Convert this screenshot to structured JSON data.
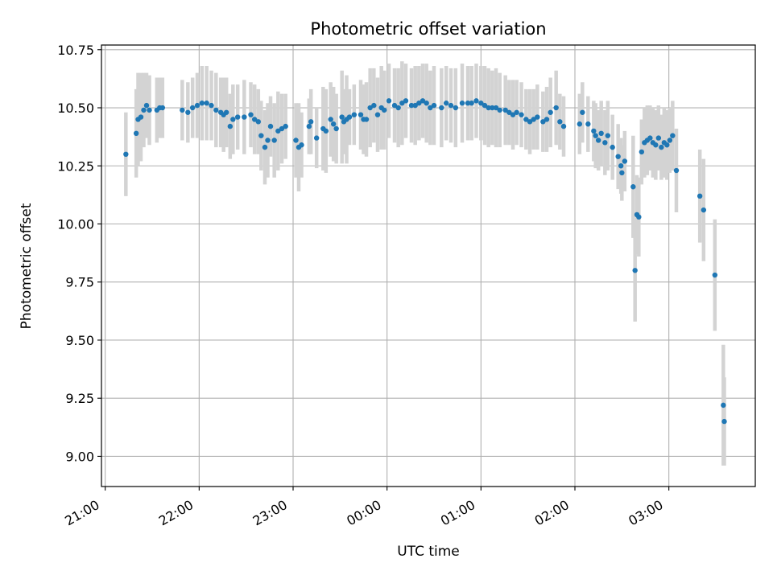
{
  "chart_data": {
    "type": "scatter",
    "title": "Photometric offset variation",
    "xlabel": "UTC time",
    "ylabel": "Photometric offset",
    "x_tick_labels": [
      "21:00",
      "22:00",
      "23:00",
      "00:00",
      "01:00",
      "02:00",
      "03:00"
    ],
    "y_tick_labels": [
      "9.00",
      "9.25",
      "9.50",
      "9.75",
      "10.00",
      "10.25",
      "10.50",
      "10.75"
    ],
    "y_ticks": [
      9.0,
      9.25,
      9.5,
      9.75,
      10.0,
      10.25,
      10.5,
      10.75
    ],
    "x_ticks_hours": [
      21,
      22,
      23,
      24,
      25,
      26,
      27
    ],
    "xlim_hours": [
      20.96,
      27.92
    ],
    "ylim": [
      8.87,
      10.77
    ],
    "grid": true,
    "colors": {
      "point": "#1f77b4",
      "errorbar": "#d3d3d3",
      "grid": "#b0b0b0"
    },
    "points": [
      {
        "t": 21.22,
        "y": 10.3,
        "e": 0.18
      },
      {
        "t": 21.33,
        "y": 10.39,
        "e": 0.19
      },
      {
        "t": 21.35,
        "y": 10.45,
        "e": 0.2
      },
      {
        "t": 21.38,
        "y": 10.46,
        "e": 0.19
      },
      {
        "t": 21.41,
        "y": 10.49,
        "e": 0.16
      },
      {
        "t": 21.44,
        "y": 10.51,
        "e": 0.14
      },
      {
        "t": 21.47,
        "y": 10.49,
        "e": 0.15
      },
      {
        "t": 21.55,
        "y": 10.49,
        "e": 0.14
      },
      {
        "t": 21.58,
        "y": 10.5,
        "e": 0.13
      },
      {
        "t": 21.61,
        "y": 10.5,
        "e": 0.13
      },
      {
        "t": 21.82,
        "y": 10.49,
        "e": 0.13
      },
      {
        "t": 21.88,
        "y": 10.48,
        "e": 0.13
      },
      {
        "t": 21.93,
        "y": 10.5,
        "e": 0.13
      },
      {
        "t": 21.98,
        "y": 10.51,
        "e": 0.14
      },
      {
        "t": 22.03,
        "y": 10.52,
        "e": 0.16
      },
      {
        "t": 22.08,
        "y": 10.52,
        "e": 0.16
      },
      {
        "t": 22.13,
        "y": 10.51,
        "e": 0.15
      },
      {
        "t": 22.18,
        "y": 10.49,
        "e": 0.16
      },
      {
        "t": 22.23,
        "y": 10.48,
        "e": 0.15
      },
      {
        "t": 22.26,
        "y": 10.47,
        "e": 0.16
      },
      {
        "t": 22.29,
        "y": 10.48,
        "e": 0.15
      },
      {
        "t": 22.33,
        "y": 10.42,
        "e": 0.14
      },
      {
        "t": 22.36,
        "y": 10.45,
        "e": 0.15
      },
      {
        "t": 22.41,
        "y": 10.46,
        "e": 0.14
      },
      {
        "t": 22.48,
        "y": 10.46,
        "e": 0.16
      },
      {
        "t": 22.55,
        "y": 10.47,
        "e": 0.14
      },
      {
        "t": 22.59,
        "y": 10.45,
        "e": 0.15
      },
      {
        "t": 22.63,
        "y": 10.44,
        "e": 0.14
      },
      {
        "t": 22.66,
        "y": 10.38,
        "e": 0.15
      },
      {
        "t": 22.7,
        "y": 10.33,
        "e": 0.16
      },
      {
        "t": 22.73,
        "y": 10.36,
        "e": 0.16
      },
      {
        "t": 22.76,
        "y": 10.42,
        "e": 0.13
      },
      {
        "t": 22.8,
        "y": 10.36,
        "e": 0.16
      },
      {
        "t": 22.84,
        "y": 10.4,
        "e": 0.17
      },
      {
        "t": 22.88,
        "y": 10.41,
        "e": 0.15
      },
      {
        "t": 22.92,
        "y": 10.42,
        "e": 0.14
      },
      {
        "t": 23.03,
        "y": 10.36,
        "e": 0.16
      },
      {
        "t": 23.06,
        "y": 10.33,
        "e": 0.19
      },
      {
        "t": 23.09,
        "y": 10.34,
        "e": 0.14
      },
      {
        "t": 23.17,
        "y": 10.42,
        "e": 0.12
      },
      {
        "t": 23.19,
        "y": 10.44,
        "e": 0.14
      },
      {
        "t": 23.25,
        "y": 10.37,
        "e": 0.13
      },
      {
        "t": 23.32,
        "y": 10.41,
        "e": 0.18
      },
      {
        "t": 23.35,
        "y": 10.4,
        "e": 0.18
      },
      {
        "t": 23.4,
        "y": 10.45,
        "e": 0.16
      },
      {
        "t": 23.43,
        "y": 10.43,
        "e": 0.16
      },
      {
        "t": 23.46,
        "y": 10.41,
        "e": 0.15
      },
      {
        "t": 23.52,
        "y": 10.46,
        "e": 0.2
      },
      {
        "t": 23.54,
        "y": 10.44,
        "e": 0.14
      },
      {
        "t": 23.57,
        "y": 10.45,
        "e": 0.19
      },
      {
        "t": 23.6,
        "y": 10.46,
        "e": 0.12
      },
      {
        "t": 23.65,
        "y": 10.47,
        "e": 0.13
      },
      {
        "t": 23.72,
        "y": 10.47,
        "e": 0.15
      },
      {
        "t": 23.75,
        "y": 10.45,
        "e": 0.15
      },
      {
        "t": 23.78,
        "y": 10.45,
        "e": 0.16
      },
      {
        "t": 23.82,
        "y": 10.5,
        "e": 0.17
      },
      {
        "t": 23.86,
        "y": 10.51,
        "e": 0.16
      },
      {
        "t": 23.9,
        "y": 10.47,
        "e": 0.16
      },
      {
        "t": 23.94,
        "y": 10.5,
        "e": 0.18
      },
      {
        "t": 23.97,
        "y": 10.49,
        "e": 0.17
      },
      {
        "t": 24.02,
        "y": 10.53,
        "e": 0.16
      },
      {
        "t": 24.08,
        "y": 10.51,
        "e": 0.16
      },
      {
        "t": 24.12,
        "y": 10.5,
        "e": 0.17
      },
      {
        "t": 24.16,
        "y": 10.52,
        "e": 0.18
      },
      {
        "t": 24.2,
        "y": 10.53,
        "e": 0.16
      },
      {
        "t": 24.26,
        "y": 10.51,
        "e": 0.16
      },
      {
        "t": 24.3,
        "y": 10.51,
        "e": 0.17
      },
      {
        "t": 24.34,
        "y": 10.52,
        "e": 0.16
      },
      {
        "t": 24.38,
        "y": 10.53,
        "e": 0.16
      },
      {
        "t": 24.42,
        "y": 10.52,
        "e": 0.17
      },
      {
        "t": 24.46,
        "y": 10.5,
        "e": 0.16
      },
      {
        "t": 24.5,
        "y": 10.51,
        "e": 0.17
      },
      {
        "t": 24.58,
        "y": 10.5,
        "e": 0.17
      },
      {
        "t": 24.63,
        "y": 10.52,
        "e": 0.16
      },
      {
        "t": 24.68,
        "y": 10.51,
        "e": 0.16
      },
      {
        "t": 24.73,
        "y": 10.5,
        "e": 0.17
      },
      {
        "t": 24.8,
        "y": 10.52,
        "e": 0.17
      },
      {
        "t": 24.86,
        "y": 10.52,
        "e": 0.16
      },
      {
        "t": 24.9,
        "y": 10.52,
        "e": 0.16
      },
      {
        "t": 24.95,
        "y": 10.53,
        "e": 0.16
      },
      {
        "t": 25.0,
        "y": 10.52,
        "e": 0.16
      },
      {
        "t": 25.04,
        "y": 10.51,
        "e": 0.17
      },
      {
        "t": 25.08,
        "y": 10.5,
        "e": 0.17
      },
      {
        "t": 25.12,
        "y": 10.5,
        "e": 0.16
      },
      {
        "t": 25.16,
        "y": 10.5,
        "e": 0.17
      },
      {
        "t": 25.2,
        "y": 10.49,
        "e": 0.16
      },
      {
        "t": 25.26,
        "y": 10.49,
        "e": 0.15
      },
      {
        "t": 25.3,
        "y": 10.48,
        "e": 0.14
      },
      {
        "t": 25.34,
        "y": 10.47,
        "e": 0.15
      },
      {
        "t": 25.38,
        "y": 10.48,
        "e": 0.14
      },
      {
        "t": 25.43,
        "y": 10.47,
        "e": 0.14
      },
      {
        "t": 25.48,
        "y": 10.45,
        "e": 0.13
      },
      {
        "t": 25.52,
        "y": 10.44,
        "e": 0.14
      },
      {
        "t": 25.56,
        "y": 10.45,
        "e": 0.13
      },
      {
        "t": 25.6,
        "y": 10.46,
        "e": 0.14
      },
      {
        "t": 25.66,
        "y": 10.44,
        "e": 0.13
      },
      {
        "t": 25.7,
        "y": 10.45,
        "e": 0.14
      },
      {
        "t": 25.74,
        "y": 10.48,
        "e": 0.15
      },
      {
        "t": 25.8,
        "y": 10.5,
        "e": 0.16
      },
      {
        "t": 25.84,
        "y": 10.44,
        "e": 0.12
      },
      {
        "t": 25.88,
        "y": 10.42,
        "e": 0.13
      },
      {
        "t": 26.05,
        "y": 10.43,
        "e": 0.13
      },
      {
        "t": 26.08,
        "y": 10.48,
        "e": 0.13
      },
      {
        "t": 26.14,
        "y": 10.43,
        "e": 0.12
      },
      {
        "t": 26.2,
        "y": 10.4,
        "e": 0.13
      },
      {
        "t": 26.22,
        "y": 10.38,
        "e": 0.14
      },
      {
        "t": 26.25,
        "y": 10.36,
        "e": 0.13
      },
      {
        "t": 26.28,
        "y": 10.39,
        "e": 0.14
      },
      {
        "t": 26.32,
        "y": 10.35,
        "e": 0.14
      },
      {
        "t": 26.35,
        "y": 10.38,
        "e": 0.15
      },
      {
        "t": 26.4,
        "y": 10.33,
        "e": 0.14
      },
      {
        "t": 26.46,
        "y": 10.29,
        "e": 0.14
      },
      {
        "t": 26.49,
        "y": 10.25,
        "e": 0.12
      },
      {
        "t": 26.5,
        "y": 10.22,
        "e": 0.12
      },
      {
        "t": 26.53,
        "y": 10.27,
        "e": 0.13
      },
      {
        "t": 26.62,
        "y": 10.16,
        "e": 0.22
      },
      {
        "t": 26.64,
        "y": 9.8,
        "e": 0.22
      },
      {
        "t": 26.66,
        "y": 10.04,
        "e": 0.17
      },
      {
        "t": 26.68,
        "y": 10.03,
        "e": 0.17
      },
      {
        "t": 26.71,
        "y": 10.31,
        "e": 0.14
      },
      {
        "t": 26.74,
        "y": 10.35,
        "e": 0.15
      },
      {
        "t": 26.77,
        "y": 10.36,
        "e": 0.15
      },
      {
        "t": 26.8,
        "y": 10.37,
        "e": 0.14
      },
      {
        "t": 26.83,
        "y": 10.35,
        "e": 0.15
      },
      {
        "t": 26.86,
        "y": 10.34,
        "e": 0.15
      },
      {
        "t": 26.89,
        "y": 10.37,
        "e": 0.14
      },
      {
        "t": 26.92,
        "y": 10.33,
        "e": 0.14
      },
      {
        "t": 26.95,
        "y": 10.35,
        "e": 0.15
      },
      {
        "t": 26.98,
        "y": 10.34,
        "e": 0.15
      },
      {
        "t": 27.01,
        "y": 10.36,
        "e": 0.14
      },
      {
        "t": 27.04,
        "y": 10.38,
        "e": 0.15
      },
      {
        "t": 27.08,
        "y": 10.23,
        "e": 0.18
      },
      {
        "t": 27.33,
        "y": 10.12,
        "e": 0.2
      },
      {
        "t": 27.37,
        "y": 10.06,
        "e": 0.22
      },
      {
        "t": 27.49,
        "y": 9.78,
        "e": 0.24
      },
      {
        "t": 27.58,
        "y": 9.22,
        "e": 0.26
      },
      {
        "t": 27.59,
        "y": 9.15,
        "e": 0.19
      }
    ]
  }
}
